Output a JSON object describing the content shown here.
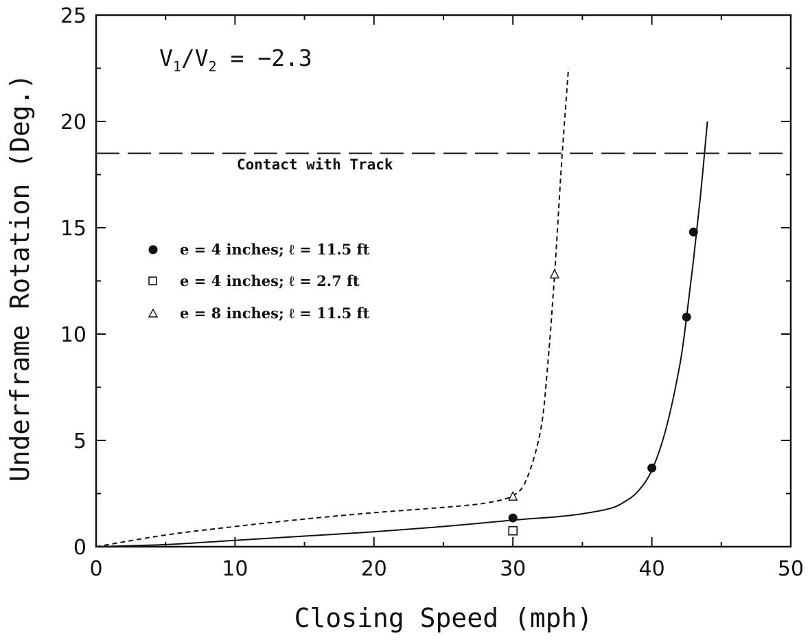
{
  "chart_data": {
    "type": "line",
    "title": "",
    "xlabel": "Closing Speed (mph)",
    "ylabel": "Underframe Rotation (Deg.)",
    "xlim": [
      0,
      50
    ],
    "ylim": [
      0,
      25
    ],
    "xticks": [
      0,
      10,
      20,
      30,
      40,
      50
    ],
    "yticks": [
      0,
      5,
      10,
      15,
      20,
      25
    ],
    "xtick_labels": [
      "0",
      "10",
      "20",
      "30",
      "40",
      "50"
    ],
    "ytick_labels": [
      "0",
      "5",
      "10",
      "15",
      "20",
      "25"
    ],
    "grid": false,
    "legend_position": "left-middle",
    "annotations": {
      "ratio_main": "V",
      "ratio_sub1": "1",
      "ratio_slash": "/V",
      "ratio_sub2": "2",
      "ratio_value": " = −2.3",
      "threshold_label": "Contact with Track"
    },
    "threshold": {
      "y": 18.5,
      "style": "long-dash"
    },
    "curves": [
      {
        "style": "solid",
        "x": [
          0,
          5,
          10,
          15,
          20,
          25,
          30,
          33,
          35,
          37,
          38,
          39,
          40,
          41,
          42,
          42.5,
          43,
          43.5,
          44
        ],
        "y": [
          0,
          0.1,
          0.3,
          0.5,
          0.7,
          0.95,
          1.25,
          1.4,
          1.55,
          1.8,
          2.1,
          2.6,
          3.6,
          5.5,
          8.5,
          10.8,
          13.5,
          16.5,
          20
        ]
      },
      {
        "style": "short-dash",
        "x": [
          0,
          5,
          10,
          15,
          20,
          25,
          28,
          30,
          31,
          32,
          32.5,
          33,
          33.5,
          34
        ],
        "y": [
          0,
          0.55,
          0.95,
          1.3,
          1.6,
          1.85,
          2.05,
          2.4,
          3.2,
          5.5,
          8.5,
          12.8,
          18,
          22.5
        ]
      }
    ],
    "series": [
      {
        "name": "e = 4 inches; ℓ = 11.5 ft",
        "marker": "filled-circle",
        "points": [
          {
            "x": 30,
            "y": 1.35
          },
          {
            "x": 40,
            "y": 3.7
          },
          {
            "x": 42.5,
            "y": 10.8
          },
          {
            "x": 43,
            "y": 14.8
          }
        ]
      },
      {
        "name": "e = 4 inches; ℓ = 2.7 ft",
        "marker": "open-square",
        "points": [
          {
            "x": 30,
            "y": 0.75
          }
        ]
      },
      {
        "name": "e = 8 inches; ℓ = 11.5 ft",
        "marker": "open-triangle",
        "points": [
          {
            "x": 30,
            "y": 2.35
          },
          {
            "x": 33,
            "y": 12.8
          }
        ]
      }
    ]
  }
}
